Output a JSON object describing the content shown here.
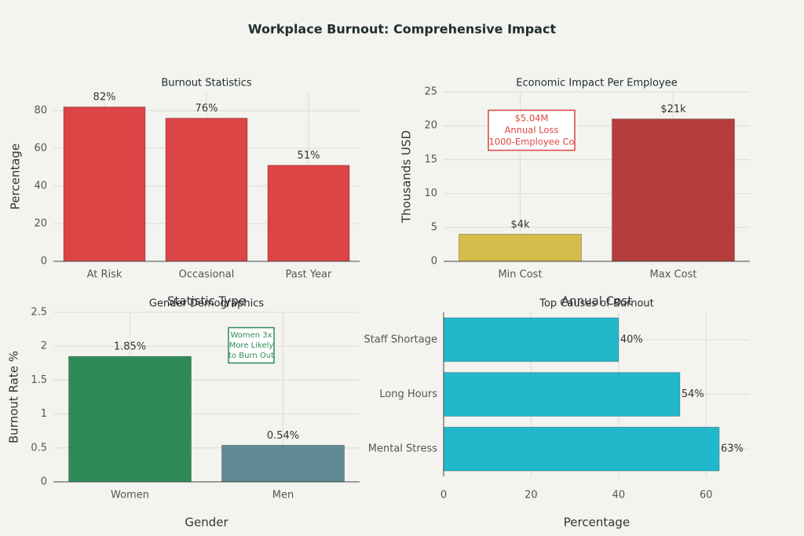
{
  "title": "Workplace Burnout: Comprehensive Impact",
  "chart_data": [
    {
      "type": "bar",
      "title": "Burnout Statistics",
      "x_label": "Statistic Type",
      "y_label": "Percentage",
      "categories": [
        "At Risk",
        "Occasional",
        "Past Year"
      ],
      "values": [
        82,
        76,
        51
      ],
      "value_labels": [
        "82%",
        "76%",
        "51%"
      ],
      "colors": [
        "#dc4446",
        "#dc4446",
        "#dc4446"
      ],
      "ylim": [
        0,
        90
      ],
      "yticks": [
        0,
        20,
        40,
        60,
        80
      ],
      "grid": true
    },
    {
      "type": "bar",
      "title": "Economic Impact Per Employee",
      "x_label": "Annual Cost",
      "y_label": "Thousands USD",
      "categories": [
        "Min Cost",
        "Max Cost"
      ],
      "values": [
        4,
        21
      ],
      "value_labels": [
        "$4k",
        "$21k"
      ],
      "colors": [
        "#d4bb4a",
        "#b53e3d"
      ],
      "ylim": [
        0,
        25
      ],
      "yticks": [
        0,
        5,
        10,
        15,
        20,
        25
      ],
      "grid": true,
      "annotation": {
        "lines": [
          "$5.04M",
          "Annual Loss",
          "1000-Employee Co"
        ],
        "color": "#d9453f"
      }
    },
    {
      "type": "bar",
      "title": "Gender Demographics",
      "x_label": "Gender",
      "y_label": "Burnout Rate %",
      "categories": [
        "Women",
        "Men"
      ],
      "values": [
        1.85,
        0.54
      ],
      "value_labels": [
        "1.85%",
        "0.54%"
      ],
      "colors": [
        "#2e8b57",
        "#5f8a93"
      ],
      "ylim": [
        0,
        2.5
      ],
      "yticks": [
        0,
        0.5,
        1,
        1.5,
        2,
        2.5
      ],
      "grid": true,
      "annotation": {
        "lines": [
          "Women 3x",
          "More Likely",
          "to Burn Out"
        ],
        "color": "#2e8b57"
      }
    },
    {
      "type": "barh",
      "title": "Top Causes of Burnout",
      "x_label": "Percentage",
      "categories": [
        "Staff Shortage",
        "Long Hours",
        "Mental Stress"
      ],
      "values": [
        40,
        54,
        63
      ],
      "value_labels": [
        "40%",
        "54%",
        "63%"
      ],
      "colors": [
        "#21b8cc",
        "#21b8cc",
        "#21b8cc"
      ],
      "xlim": [
        0,
        70
      ],
      "xticks": [
        0,
        20,
        40,
        60
      ],
      "grid": true
    }
  ]
}
